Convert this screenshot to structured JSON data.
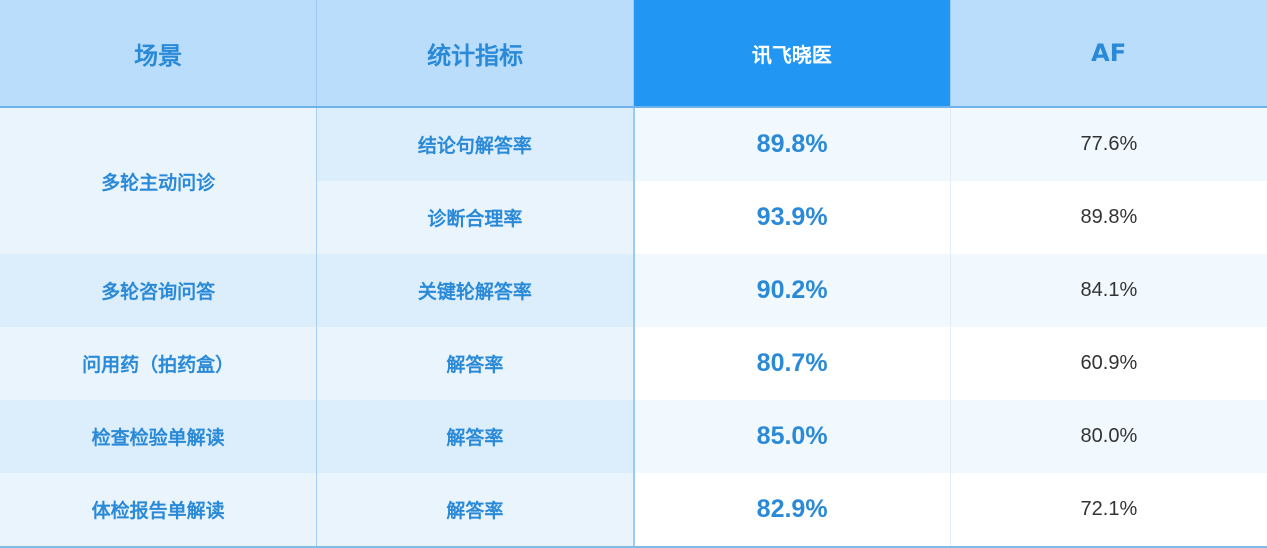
{
  "header": {
    "scene": "场景",
    "metric": "统计指标",
    "xunfei": "讯飞晓医",
    "af": "AF"
  },
  "colors": {
    "header_bg": "#b9ddfb",
    "highlight": "#2196f3",
    "text": "#2a8ad8"
  },
  "rows": [
    {
      "scene": "多轮主动问诊",
      "metric": "结论句解答率",
      "xunfei": "89.8%",
      "af": "77.6%"
    },
    {
      "scene": "",
      "metric": "诊断合理率",
      "xunfei": "93.9%",
      "af": "89.8%"
    },
    {
      "scene": "多轮咨询问答",
      "metric": "关键轮解答率",
      "xunfei": "90.2%",
      "af": "84.1%"
    },
    {
      "scene": "问用药（拍药盒）",
      "metric": "解答率",
      "xunfei": "80.7%",
      "af": "60.9%"
    },
    {
      "scene": "检查检验单解读",
      "metric": "解答率",
      "xunfei": "85.0%",
      "af": "80.0%"
    },
    {
      "scene": "体检报告单解读",
      "metric": "解答率",
      "xunfei": "82.9%",
      "af": "72.1%"
    }
  ]
}
